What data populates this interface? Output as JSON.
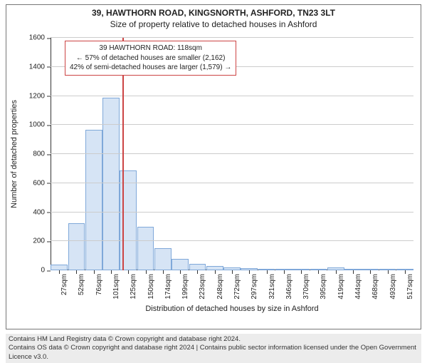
{
  "title_line1": "39, HAWTHORN ROAD, KINGSNORTH, ASHFORD, TN23 3LT",
  "title_line2": "Size of property relative to detached houses in Ashford",
  "y_label": "Number of detached properties",
  "x_label": "Distribution of detached houses by size in Ashford",
  "chart": {
    "type": "histogram",
    "ylim": [
      0,
      1600
    ],
    "yticks": [
      0,
      200,
      400,
      600,
      800,
      1000,
      1200,
      1400,
      1600
    ],
    "grid_color": "#cccccc",
    "axis_color": "#333333",
    "bar_fill": "#d6e4f5",
    "bar_stroke": "#7fa8d9",
    "background": "#ffffff",
    "xtick_labels": [
      "27sqm",
      "52sqm",
      "76sqm",
      "101sqm",
      "125sqm",
      "150sqm",
      "174sqm",
      "199sqm",
      "223sqm",
      "248sqm",
      "272sqm",
      "297sqm",
      "321sqm",
      "346sqm",
      "370sqm",
      "395sqm",
      "419sqm",
      "444sqm",
      "468sqm",
      "493sqm",
      "517sqm"
    ],
    "bar_values": [
      40,
      325,
      965,
      1190,
      685,
      300,
      150,
      80,
      45,
      30,
      20,
      15,
      12,
      8,
      8,
      6,
      18,
      4,
      3,
      3,
      3
    ],
    "reference": {
      "position_index": 3.7,
      "color": "#cc4444",
      "line_width": 2
    },
    "annotation": {
      "lines": [
        "39 HAWTHORN ROAD: 118sqm",
        "← 57% of detached houses are smaller (2,162)",
        "42% of semi-detached houses are larger (1,579) →"
      ],
      "border_color": "#cc4444"
    }
  },
  "footer_line1": "Contains HM Land Registry data © Crown copyright and database right 2024.",
  "footer_line2": "Contains OS data © Crown copyright and database right 2024 | Contains public sector information licensed under the Open Government Licence v3.0."
}
